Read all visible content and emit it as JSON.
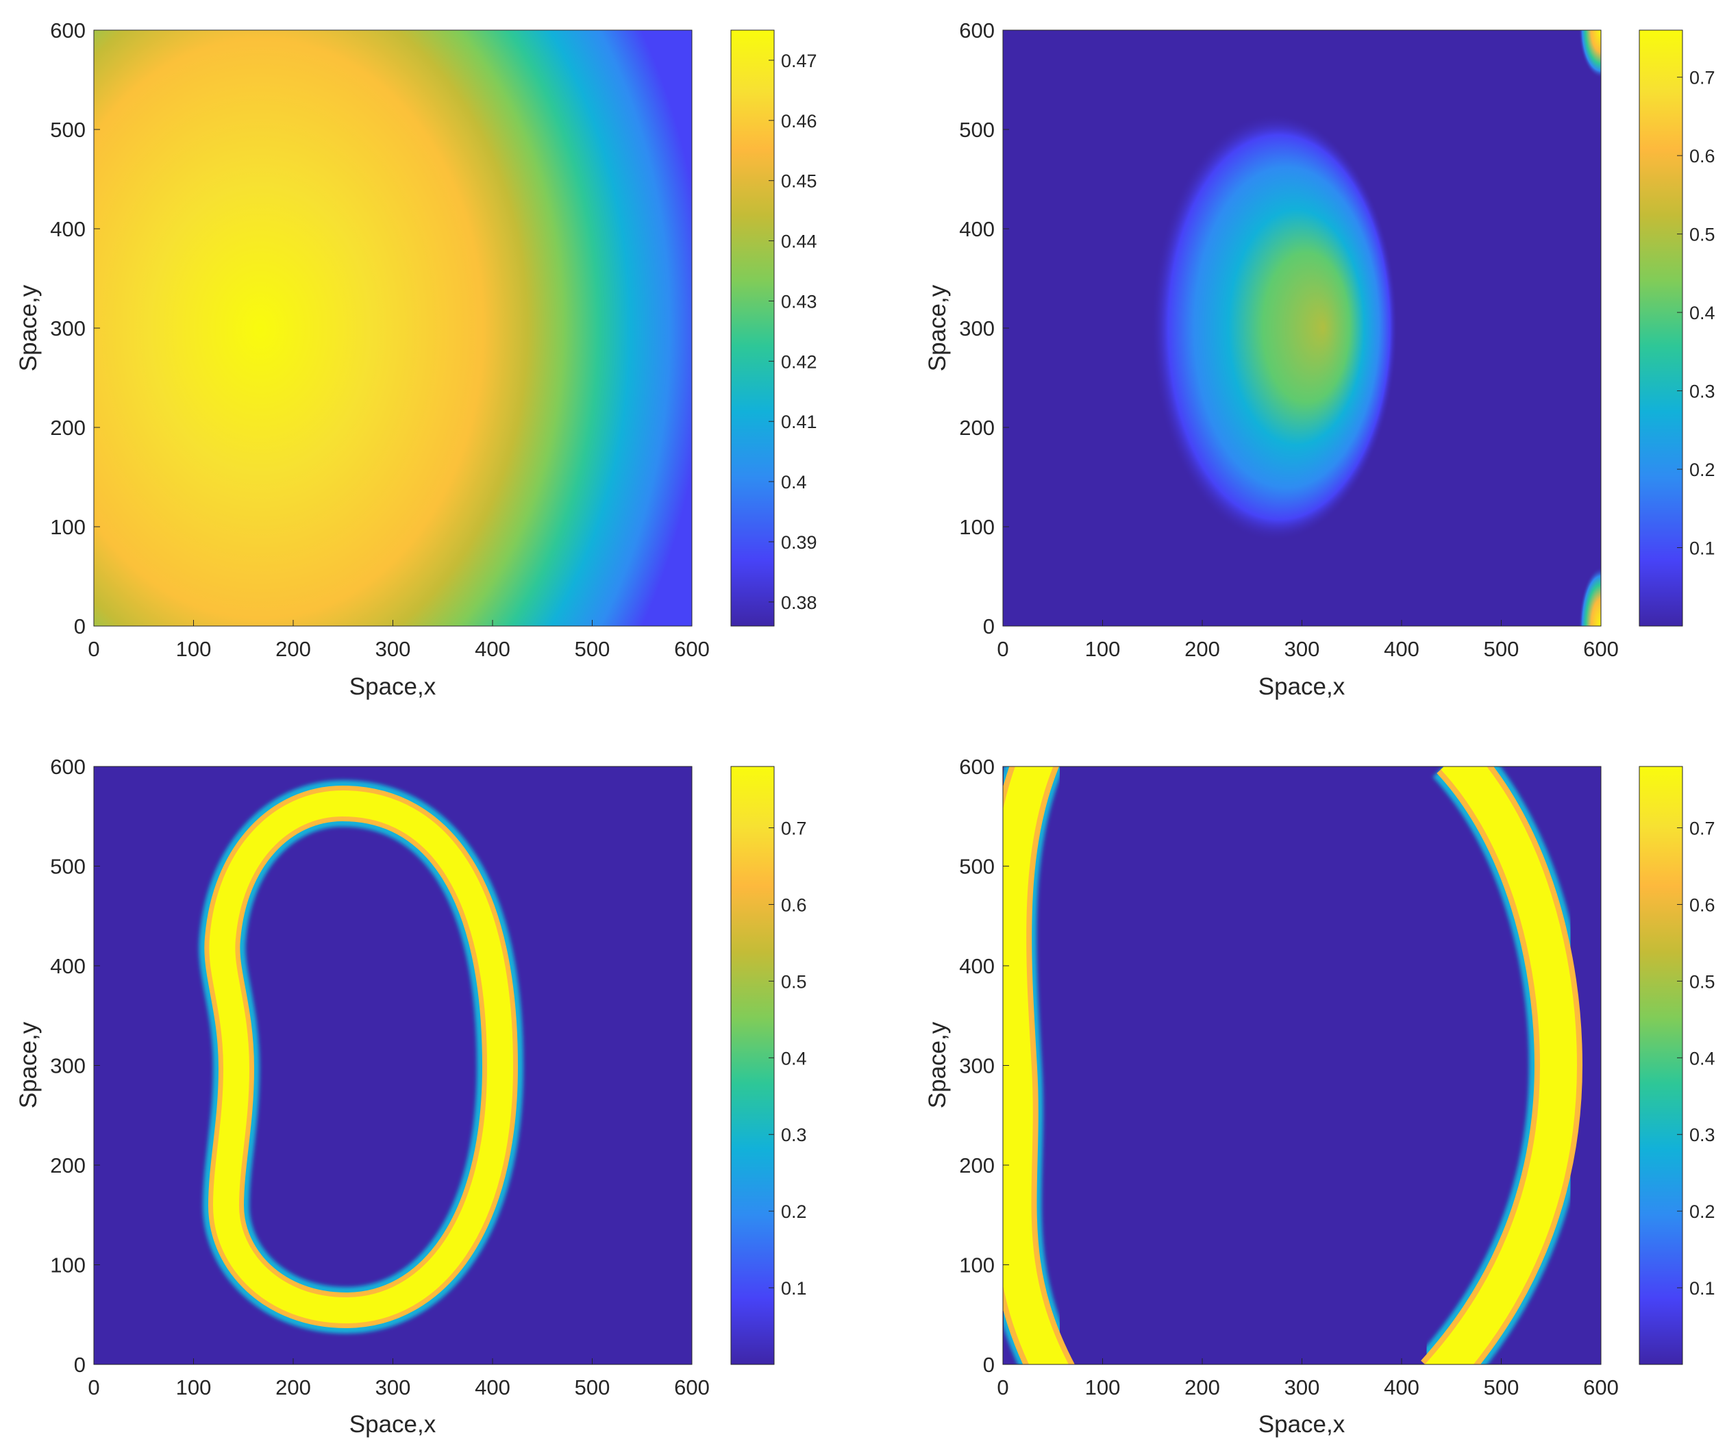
{
  "colormap": [
    "#3E26A8",
    "#4743F7",
    "#2F8CF2",
    "#12B1D9",
    "#2EC797",
    "#81CC58",
    "#C4BC37",
    "#FDB93D",
    "#F7E132",
    "#F9FB0E"
  ],
  "chart_data": [
    {
      "type": "heatmap",
      "panel": "top-left",
      "xlabel": "Space,x",
      "ylabel": "Space,y",
      "xlim": [
        0,
        600
      ],
      "ylim": [
        0,
        600
      ],
      "xticks": [
        0,
        100,
        200,
        300,
        400,
        500,
        600
      ],
      "yticks": [
        0,
        100,
        200,
        300,
        400,
        500,
        600
      ],
      "colorbar": {
        "min": 0.376,
        "max": 0.475,
        "ticks": [
          0.38,
          0.39,
          0.4,
          0.41,
          0.42,
          0.43,
          0.44,
          0.45,
          0.46,
          0.47
        ]
      },
      "pattern": "broad smooth maximum near (165, 300), values decreasing toward the right edge",
      "peak_value": 0.475,
      "min_value": 0.376
    },
    {
      "type": "heatmap",
      "panel": "top-right",
      "xlabel": "Space,x",
      "ylabel": "Space,y",
      "xlim": [
        0,
        600
      ],
      "ylim": [
        0,
        600
      ],
      "xticks": [
        0,
        100,
        200,
        300,
        400,
        500,
        600
      ],
      "yticks": [
        0,
        100,
        200,
        300,
        400,
        500,
        600
      ],
      "colorbar": {
        "min": 0.0,
        "max": 0.76,
        "ticks": [
          0.1,
          0.2,
          0.3,
          0.4,
          0.5,
          0.6,
          0.7
        ]
      },
      "pattern": "elliptical spot centred near (265, 300), plus small bright patches at the top-right and bottom-right corners",
      "peak_value": 0.55,
      "min_value": 0.0
    },
    {
      "type": "heatmap",
      "panel": "bottom-left",
      "xlabel": "Space,x",
      "ylabel": "Space,y",
      "xlim": [
        0,
        600
      ],
      "ylim": [
        0,
        600
      ],
      "xticks": [
        0,
        100,
        200,
        300,
        400,
        500,
        600
      ],
      "yticks": [
        0,
        100,
        200,
        300,
        400,
        500,
        600
      ],
      "colorbar": {
        "min": 0.0,
        "max": 0.78,
        "ticks": [
          0.1,
          0.2,
          0.3,
          0.4,
          0.5,
          0.6,
          0.7
        ]
      },
      "pattern": "closed kidney-shaped ring spanning x 115 to 410, y 50 to 565",
      "peak_value": 0.78,
      "min_value": 0.0
    },
    {
      "type": "heatmap",
      "panel": "bottom-right",
      "xlabel": "Space,x",
      "ylabel": "Space,y",
      "xlim": [
        0,
        600
      ],
      "ylim": [
        0,
        600
      ],
      "xticks": [
        0,
        100,
        200,
        300,
        400,
        500,
        600
      ],
      "yticks": [
        0,
        100,
        200,
        300,
        400,
        500,
        600
      ],
      "colorbar": {
        "min": 0.0,
        "max": 0.78,
        "ticks": [
          0.1,
          0.2,
          0.3,
          0.4,
          0.5,
          0.6,
          0.7
        ]
      },
      "pattern": "two arc-shaped bands: one along the left edge (x 0 to 95) and one on the right (x 410 to 560)",
      "peak_value": 0.78,
      "min_value": 0.0
    }
  ]
}
